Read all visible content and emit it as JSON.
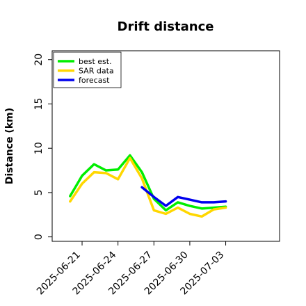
{
  "chart_data": {
    "type": "line",
    "title": "Drift distance",
    "xlabel": "",
    "ylabel": "Distance (km)",
    "x_tick_labels": [
      "2025-06-21",
      "2025-06-24",
      "2025-06-27",
      "2025-06-30",
      "2025-07-03"
    ],
    "x_tick_days": [
      21,
      24,
      27,
      30,
      33
    ],
    "xlim_days": [
      18.5,
      37.5
    ],
    "y_ticks": [
      0,
      5,
      10,
      15,
      20
    ],
    "ylim": [
      -0.5,
      21
    ],
    "grid": false,
    "legend_position": "top-left",
    "series": [
      {
        "name": "best est.",
        "color": "#00ee00",
        "x_days": [
          20,
          21,
          22,
          23,
          24,
          25,
          26,
          27,
          28,
          29,
          30,
          31,
          32,
          33
        ],
        "y": [
          4.6,
          6.9,
          8.2,
          7.5,
          7.6,
          9.2,
          7.3,
          4.3,
          3.0,
          3.9,
          3.5,
          3.2,
          3.3,
          3.4
        ]
      },
      {
        "name": "SAR data",
        "color": "#ffd700",
        "x_days": [
          20,
          21,
          22,
          23,
          24,
          25,
          26,
          27,
          28,
          29,
          30,
          31,
          32,
          33
        ],
        "y": [
          4.0,
          6.0,
          7.3,
          7.2,
          6.5,
          8.9,
          6.6,
          3.0,
          2.6,
          3.3,
          2.6,
          2.3,
          3.1,
          3.3
        ]
      },
      {
        "name": "forecast",
        "color": "#0000ee",
        "x_days": [
          26,
          27,
          28,
          29,
          30,
          31,
          32,
          33
        ],
        "y": [
          5.6,
          4.5,
          3.5,
          4.5,
          4.2,
          3.9,
          3.9,
          4.0
        ]
      }
    ]
  }
}
